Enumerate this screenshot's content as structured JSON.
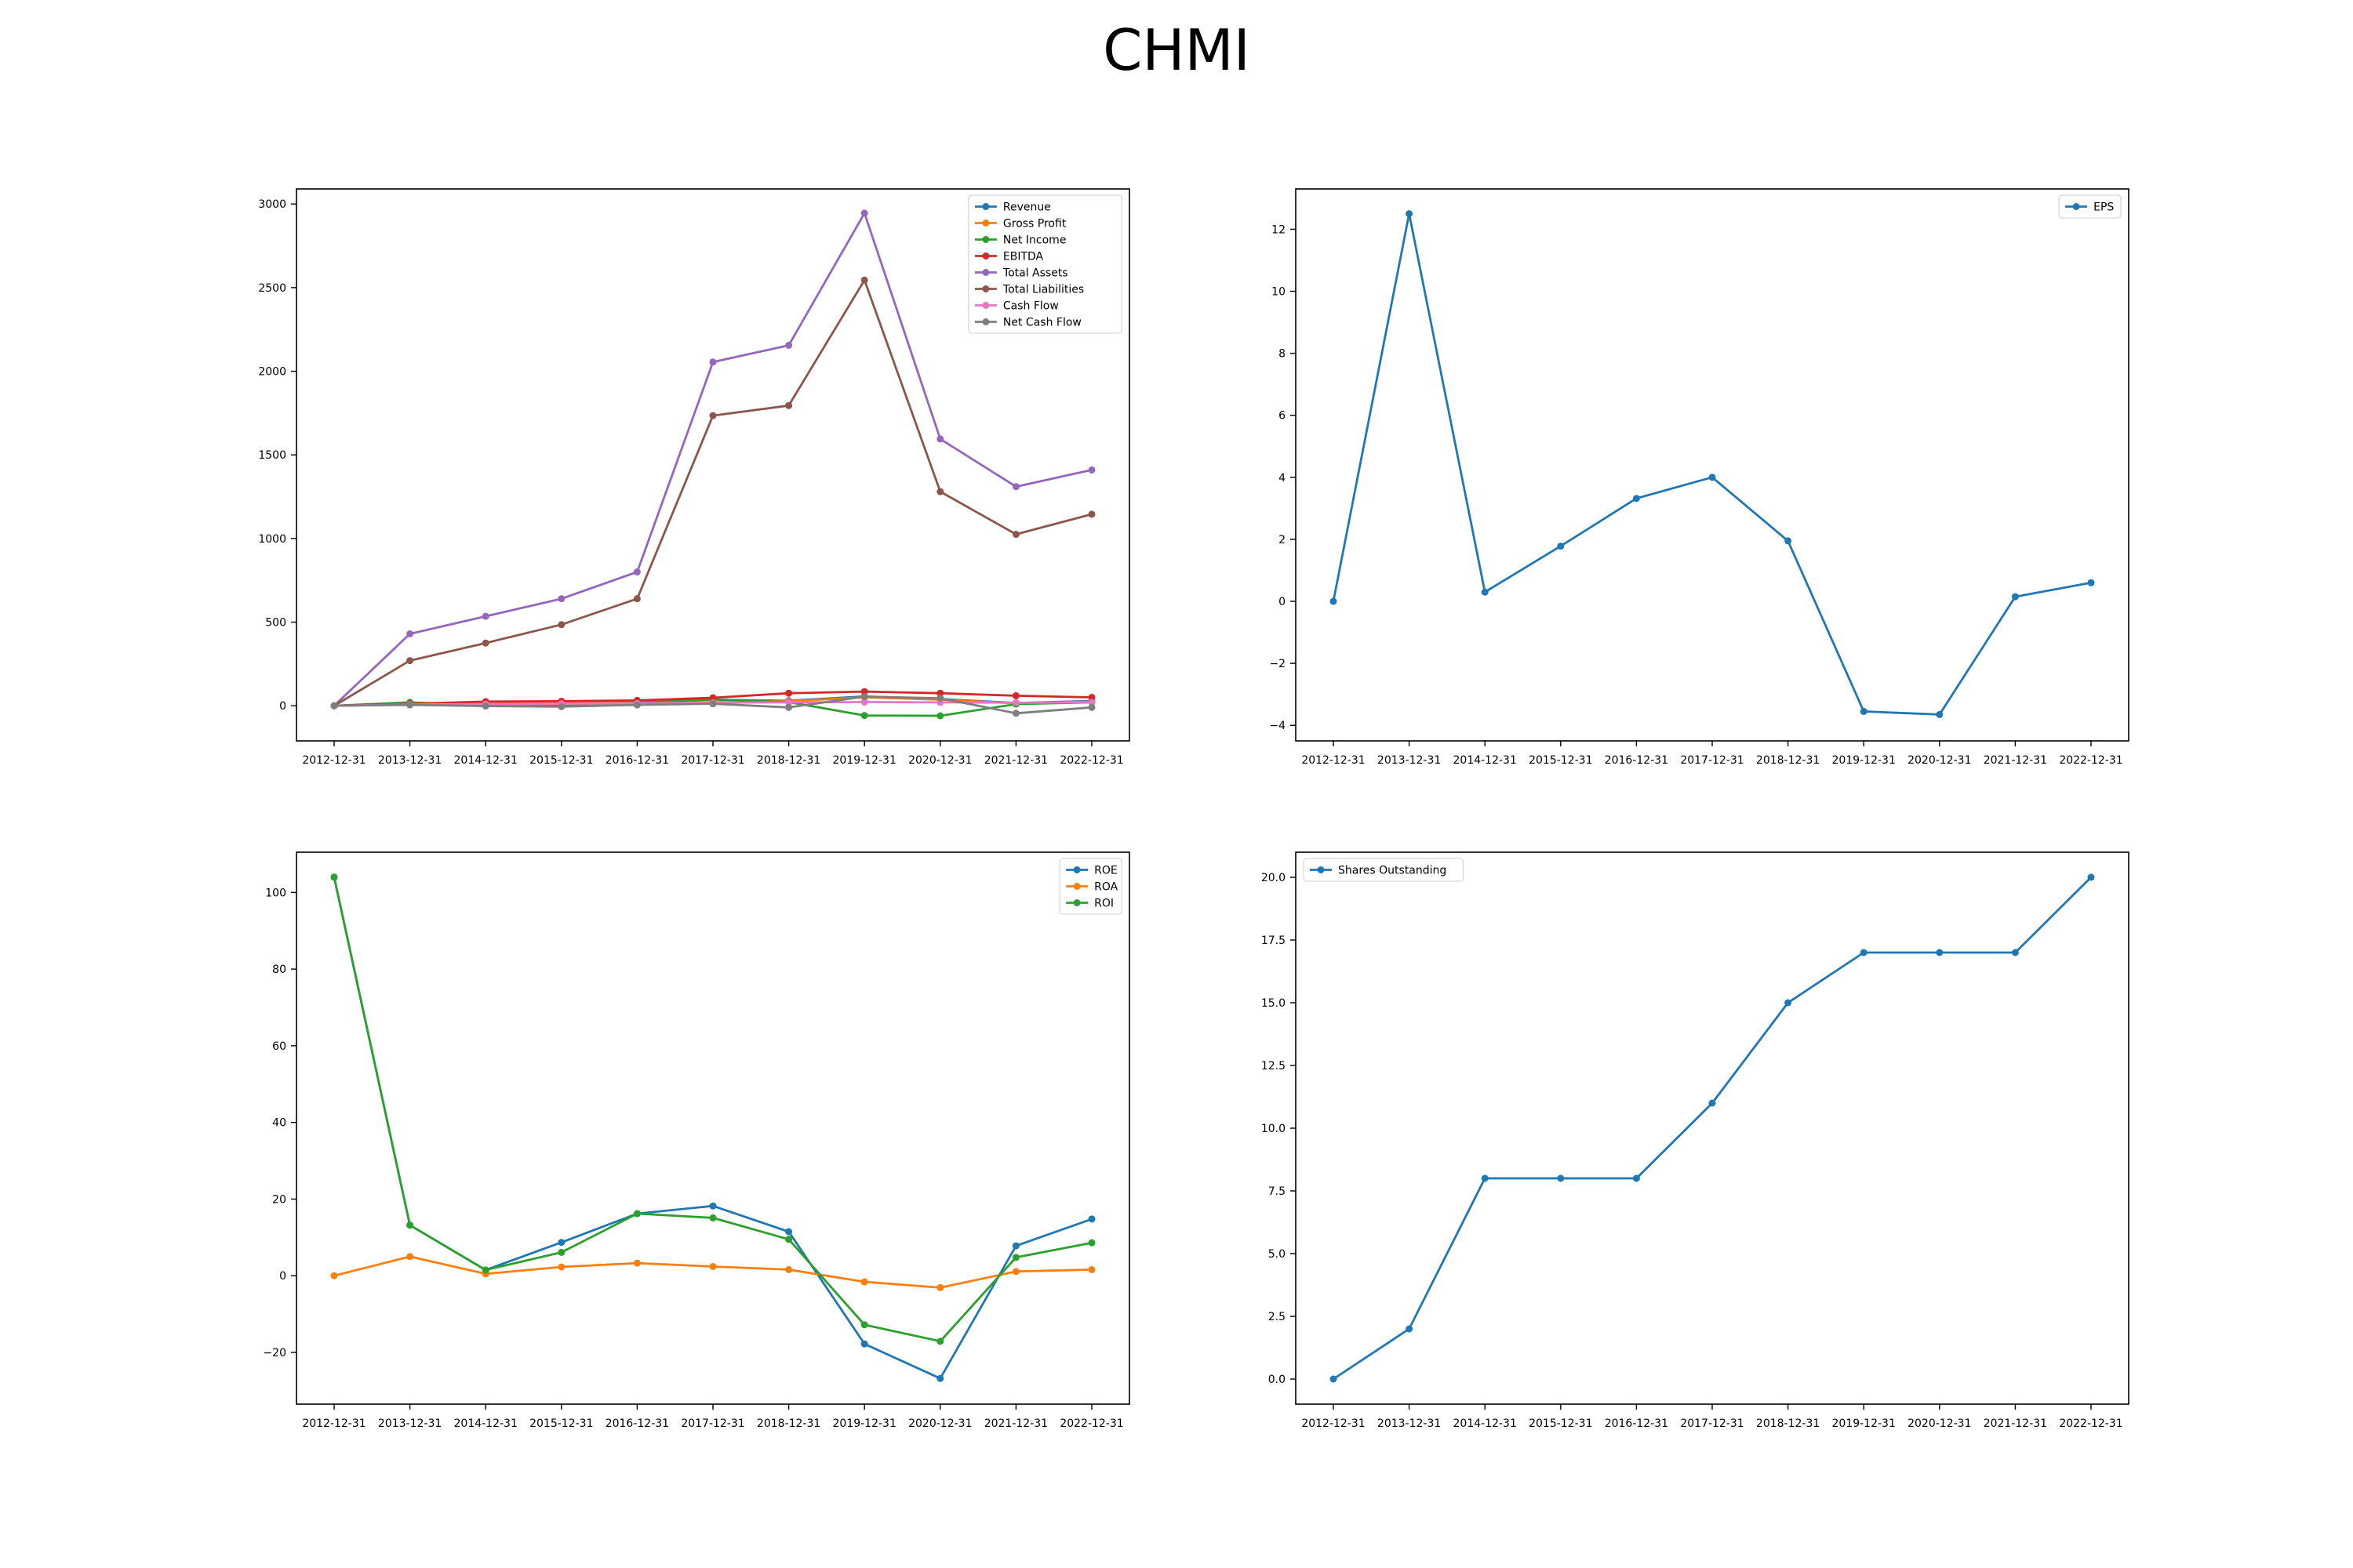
{
  "title": "CHMI",
  "chart_data": [
    {
      "type": "line",
      "categories": [
        "2012-12-31",
        "2013-12-31",
        "2014-12-31",
        "2015-12-31",
        "2016-12-31",
        "2017-12-31",
        "2018-12-31",
        "2019-12-31",
        "2020-12-31",
        "2021-12-31",
        "2022-12-31"
      ],
      "ylim": [
        -210,
        3090
      ],
      "yticks": [
        0,
        500,
        1000,
        1500,
        2000,
        2500,
        3000
      ],
      "ytick_labels": [
        "0",
        "500",
        "1000",
        "1500",
        "2000",
        "2500",
        "3000"
      ],
      "legend_position": "top-right",
      "series": [
        {
          "name": "Revenue",
          "color": "#1f77b4",
          "values": [
            0,
            14,
            17,
            21,
            26,
            36,
            30,
            56,
            40,
            17,
            28
          ]
        },
        {
          "name": "Gross Profit",
          "color": "#ff7f0e",
          "values": [
            0,
            13,
            15,
            19,
            24,
            33,
            27,
            50,
            36,
            15,
            25
          ]
        },
        {
          "name": "Net Income",
          "color": "#2ca02c",
          "values": [
            0,
            20,
            2,
            7,
            17,
            38,
            22,
            -58,
            -60,
            10,
            20
          ]
        },
        {
          "name": "EBITDA",
          "color": "#d62728",
          "values": [
            0,
            12,
            25,
            27,
            32,
            48,
            75,
            85,
            75,
            60,
            50
          ]
        },
        {
          "name": "Total Assets",
          "color": "#9467bd",
          "values": [
            0,
            430,
            535,
            640,
            800,
            2055,
            2155,
            2945,
            1595,
            1310,
            1410
          ]
        },
        {
          "name": "Total Liabilities",
          "color": "#8c564b",
          "values": [
            0,
            270,
            375,
            485,
            640,
            1735,
            1795,
            2545,
            1280,
            1025,
            1145
          ]
        },
        {
          "name": "Cash Flow",
          "color": "#e377c2",
          "values": [
            0,
            8,
            10,
            12,
            14,
            18,
            20,
            22,
            20,
            18,
            20
          ]
        },
        {
          "name": "Net Cash Flow",
          "color": "#7f7f7f",
          "values": [
            0,
            5,
            -2,
            -5,
            5,
            12,
            -10,
            55,
            45,
            -45,
            -10
          ]
        }
      ]
    },
    {
      "type": "line",
      "categories": [
        "2012-12-31",
        "2013-12-31",
        "2014-12-31",
        "2015-12-31",
        "2016-12-31",
        "2017-12-31",
        "2018-12-31",
        "2019-12-31",
        "2020-12-31",
        "2021-12-31",
        "2022-12-31"
      ],
      "ylim": [
        -4.5,
        13.3
      ],
      "yticks": [
        -4,
        -2,
        0,
        2,
        4,
        6,
        8,
        10,
        12
      ],
      "ytick_labels": [
        "−4",
        "−2",
        "0",
        "2",
        "4",
        "6",
        "8",
        "10",
        "12"
      ],
      "legend_position": "top-right",
      "series": [
        {
          "name": "EPS",
          "color": "#1f77b4",
          "values": [
            0,
            12.5,
            0.3,
            1.78,
            3.32,
            4.0,
            1.95,
            -3.55,
            -3.65,
            0.15,
            0.6
          ]
        }
      ]
    },
    {
      "type": "line",
      "categories": [
        "2012-12-31",
        "2013-12-31",
        "2014-12-31",
        "2015-12-31",
        "2016-12-31",
        "2017-12-31",
        "2018-12-31",
        "2019-12-31",
        "2020-12-31",
        "2021-12-31",
        "2022-12-31"
      ],
      "ylim": [
        -33.5,
        110.5
      ],
      "yticks": [
        -20,
        0,
        20,
        40,
        60,
        80,
        100
      ],
      "ytick_labels": [
        "−20",
        "0",
        "20",
        "40",
        "60",
        "80",
        "100"
      ],
      "legend_position": "top-right",
      "series": [
        {
          "name": "ROE",
          "color": "#1f77b4",
          "values": [
            104,
            13.2,
            1.5,
            8.7,
            16.2,
            18.2,
            11.5,
            -17.8,
            -26.8,
            7.8,
            14.8
          ]
        },
        {
          "name": "ROA",
          "color": "#ff7f0e",
          "values": [
            0,
            5,
            0.5,
            2.3,
            3.3,
            2.4,
            1.6,
            -1.6,
            -3.1,
            1.1,
            1.6
          ]
        },
        {
          "name": "ROI",
          "color": "#2ca02c",
          "values": [
            104,
            13.2,
            1.5,
            6.1,
            16.2,
            15.1,
            9.5,
            -12.8,
            -17.1,
            4.8,
            8.6
          ]
        }
      ]
    },
    {
      "type": "line",
      "categories": [
        "2012-12-31",
        "2013-12-31",
        "2014-12-31",
        "2015-12-31",
        "2016-12-31",
        "2017-12-31",
        "2018-12-31",
        "2019-12-31",
        "2020-12-31",
        "2021-12-31",
        "2022-12-31"
      ],
      "ylim": [
        -1,
        21
      ],
      "yticks": [
        0,
        2.5,
        5,
        7.5,
        10,
        12.5,
        15,
        17.5,
        20
      ],
      "ytick_labels": [
        "0.0",
        "2.5",
        "5.0",
        "7.5",
        "10.0",
        "12.5",
        "15.0",
        "17.5",
        "20.0"
      ],
      "legend_position": "top-left",
      "series": [
        {
          "name": "Shares Outstanding",
          "color": "#1f77b4",
          "values": [
            0,
            2,
            8,
            8,
            8,
            11,
            15,
            17,
            17,
            17,
            20
          ]
        }
      ]
    }
  ]
}
